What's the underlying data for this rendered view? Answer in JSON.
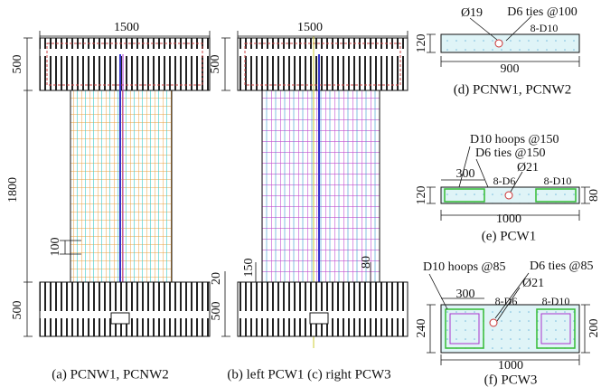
{
  "panels": [
    {
      "caption": "(a) PCNW1, PCNW2",
      "width": "1500",
      "top_height": "500",
      "body_height": "1800",
      "spacing": "100",
      "bottom_height": "500"
    },
    {
      "caption": "(b) left PCW1 (c) right PCW3",
      "width": "1500",
      "top_height": "500",
      "spacing": "150",
      "cover": "20",
      "edge": "80",
      "bottom_height": "500"
    },
    {
      "caption": "(d) PCNW1, PCNW2",
      "duct": "Ø19",
      "ties": "D6 ties @100",
      "bars": "8-D10",
      "thickness": "120",
      "length": "900"
    },
    {
      "caption": "(e) PCW1",
      "hoops": "D10 hoops @150",
      "ties": "D6 ties @150",
      "duct": "Ø21",
      "boundary": "300",
      "web_bars": "8-D6",
      "bars": "8-D10",
      "thickness": "120",
      "boundary_thickness": "80",
      "length": "1000"
    },
    {
      "caption": "(f) PCW3",
      "hoops": "D10 hoops @85",
      "ties": "D6 ties @85",
      "duct": "Ø21",
      "boundary": "300",
      "web_bars": "8-D6",
      "bars": "8-D10",
      "thickness": "240",
      "boundary_thickness": "200",
      "length": "1000"
    }
  ]
}
